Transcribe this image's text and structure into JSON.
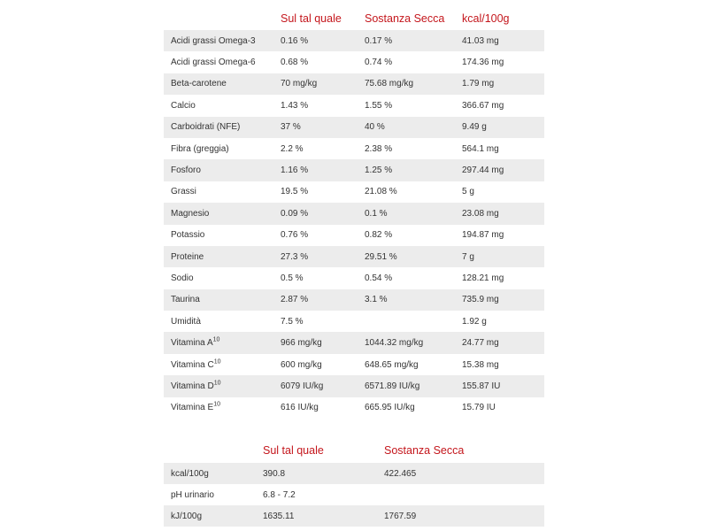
{
  "nutrients": {
    "headers": [
      "",
      "Sul tal quale",
      "Sostanza Secca",
      "kcal/100g"
    ],
    "rows": [
      {
        "name": "Acidi grassi Omega-3",
        "sup": "",
        "asis": "0.16 %",
        "dry": "0.17 %",
        "kcal": "41.03 mg"
      },
      {
        "name": "Acidi grassi Omega-6",
        "sup": "",
        "asis": "0.68 %",
        "dry": "0.74 %",
        "kcal": "174.36 mg"
      },
      {
        "name": "Beta-carotene",
        "sup": "",
        "asis": "70 mg/kg",
        "dry": "75.68 mg/kg",
        "kcal": "1.79 mg"
      },
      {
        "name": "Calcio",
        "sup": "",
        "asis": "1.43 %",
        "dry": "1.55 %",
        "kcal": "366.67 mg"
      },
      {
        "name": "Carboidrati (NFE)",
        "sup": "",
        "asis": "37 %",
        "dry": "40 %",
        "kcal": "9.49 g"
      },
      {
        "name": "Fibra (greggia)",
        "sup": "",
        "asis": "2.2 %",
        "dry": "2.38 %",
        "kcal": "564.1 mg"
      },
      {
        "name": "Fosforo",
        "sup": "",
        "asis": "1.16 %",
        "dry": "1.25 %",
        "kcal": "297.44 mg"
      },
      {
        "name": "Grassi",
        "sup": "",
        "asis": "19.5 %",
        "dry": "21.08 %",
        "kcal": "5 g"
      },
      {
        "name": "Magnesio",
        "sup": "",
        "asis": "0.09 %",
        "dry": "0.1 %",
        "kcal": "23.08 mg"
      },
      {
        "name": "Potassio",
        "sup": "",
        "asis": "0.76 %",
        "dry": "0.82 %",
        "kcal": "194.87 mg"
      },
      {
        "name": "Proteine",
        "sup": "",
        "asis": "27.3 %",
        "dry": "29.51 %",
        "kcal": "7 g"
      },
      {
        "name": "Sodio",
        "sup": "",
        "asis": "0.5 %",
        "dry": "0.54 %",
        "kcal": "128.21 mg"
      },
      {
        "name": "Taurina",
        "sup": "",
        "asis": "2.87 %",
        "dry": "3.1 %",
        "kcal": "735.9 mg"
      },
      {
        "name": "Umidità",
        "sup": "",
        "asis": "7.5 %",
        "dry": "",
        "kcal": "1.92 g"
      },
      {
        "name": "Vitamina A",
        "sup": "10",
        "asis": "966 mg/kg",
        "dry": "1044.32 mg/kg",
        "kcal": "24.77 mg"
      },
      {
        "name": "Vitamina C",
        "sup": "10",
        "asis": "600 mg/kg",
        "dry": "648.65 mg/kg",
        "kcal": "15.38 mg"
      },
      {
        "name": "Vitamina D",
        "sup": "10",
        "asis": "6079 IU/kg",
        "dry": "6571.89 IU/kg",
        "kcal": "155.87 IU"
      },
      {
        "name": "Vitamina E",
        "sup": "10",
        "asis": "616 IU/kg",
        "dry": "665.95 IU/kg",
        "kcal": "15.79 IU"
      }
    ]
  },
  "energy": {
    "headers": [
      "",
      "Sul tal quale",
      "Sostanza Secca"
    ],
    "rows": [
      {
        "name": "kcal/100g",
        "asis": "390.8",
        "dry": "422.465"
      },
      {
        "name": "pH urinario",
        "asis": "6.8 - 7.2",
        "dry": ""
      },
      {
        "name": "kJ/100g",
        "asis": "1635.11",
        "dry": "1767.59"
      }
    ]
  },
  "colors": {
    "header_text": "#c4161c",
    "row_stripe": "#ececec",
    "text": "#333333"
  }
}
